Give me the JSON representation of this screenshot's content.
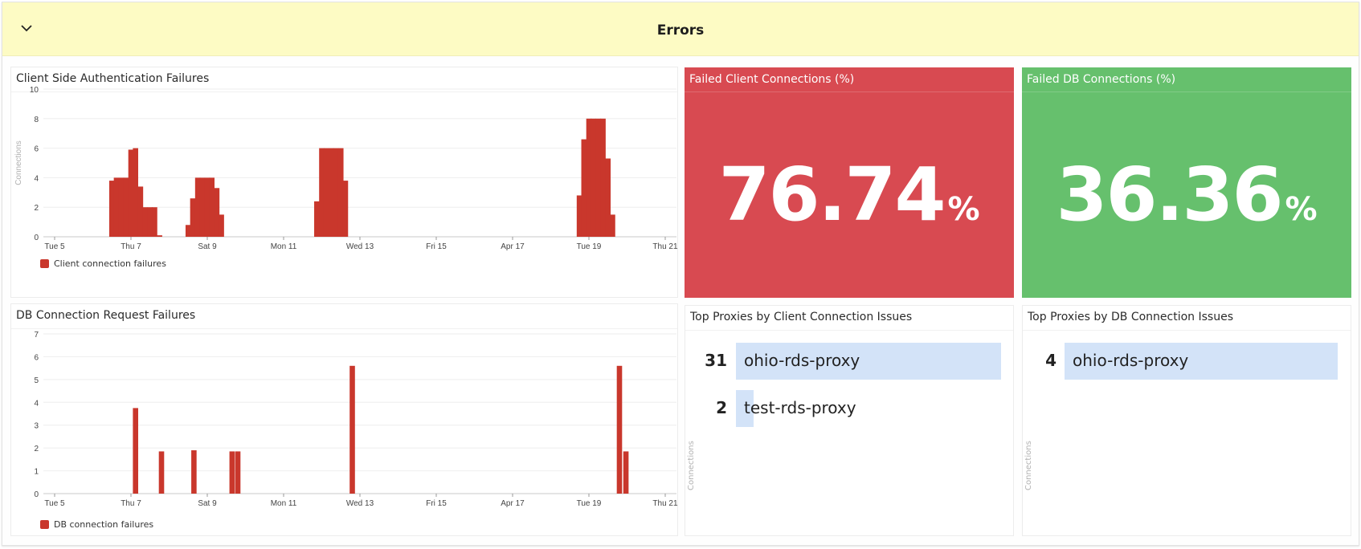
{
  "group": {
    "title": "Errors",
    "collapse_icon": "chevron-down-icon"
  },
  "colors": {
    "header_bg": "#fdfbc4",
    "bar": "#c9372c",
    "stat_bad": "#d84a51",
    "stat_good": "#66c06d",
    "toplist_bar": "#d3e3f8"
  },
  "panels": {
    "client_auth": {
      "title": "Client Side Authentication Failures",
      "ylabel": "Connections",
      "legend": "Client connection failures"
    },
    "db_requests": {
      "title": "DB Connection Request Failures",
      "ylabel": "",
      "legend": "DB connection failures"
    },
    "failed_client": {
      "title": "Failed Client Connections (%)",
      "value": "76.74",
      "unit": "%"
    },
    "failed_db": {
      "title": "Failed DB Connections (%)",
      "value": "36.36",
      "unit": "%"
    },
    "top_client": {
      "title": "Top Proxies by Client Connection Issues",
      "ylabel": "Connections",
      "rows": [
        {
          "count": "31",
          "name": "ohio-rds-proxy"
        },
        {
          "count": "2",
          "name": "test-rds-proxy"
        }
      ]
    },
    "top_db": {
      "title": "Top Proxies by DB Connection Issues",
      "ylabel": "Connections",
      "rows": [
        {
          "count": "4",
          "name": "ohio-rds-proxy"
        }
      ]
    }
  },
  "chart_data": [
    {
      "type": "bar",
      "title": "Client Side Authentication Failures",
      "xlabel": "",
      "ylabel": "Connections",
      "ylim": [
        0,
        10
      ],
      "yticks": [
        0,
        2,
        4,
        6,
        8,
        10
      ],
      "xticks": [
        "Tue 5",
        "Thu 7",
        "Sat 9",
        "Mon 11",
        "Wed 13",
        "Fri 15",
        "Apr 17",
        "Tue 19",
        "Thu 21"
      ],
      "grid": true,
      "legend_position": "bottom-left",
      "series": [
        {
          "name": "Client connection failures",
          "color": "#c9372c",
          "points": [
            {
              "day": 6.5,
              "value": 3.8
            },
            {
              "day": 6.62,
              "value": 4
            },
            {
              "day": 6.75,
              "value": 4
            },
            {
              "day": 6.87,
              "value": 4
            },
            {
              "day": 7.0,
              "value": 5.9
            },
            {
              "day": 7.12,
              "value": 6
            },
            {
              "day": 7.25,
              "value": 3.4
            },
            {
              "day": 7.37,
              "value": 2
            },
            {
              "day": 7.5,
              "value": 2
            },
            {
              "day": 7.62,
              "value": 2
            },
            {
              "day": 7.75,
              "value": 0.1
            },
            {
              "day": 8.5,
              "value": 0.8
            },
            {
              "day": 8.62,
              "value": 2.6
            },
            {
              "day": 8.75,
              "value": 4
            },
            {
              "day": 8.87,
              "value": 4
            },
            {
              "day": 9.0,
              "value": 4
            },
            {
              "day": 9.12,
              "value": 4
            },
            {
              "day": 9.25,
              "value": 3.3
            },
            {
              "day": 9.37,
              "value": 1.5
            },
            {
              "day": 11.87,
              "value": 2.4
            },
            {
              "day": 12.0,
              "value": 6
            },
            {
              "day": 12.12,
              "value": 6
            },
            {
              "day": 12.25,
              "value": 6
            },
            {
              "day": 12.37,
              "value": 6
            },
            {
              "day": 12.5,
              "value": 6
            },
            {
              "day": 12.62,
              "value": 3.8
            },
            {
              "day": 18.75,
              "value": 2.8
            },
            {
              "day": 18.87,
              "value": 6.6
            },
            {
              "day": 19.0,
              "value": 8
            },
            {
              "day": 19.12,
              "value": 8
            },
            {
              "day": 19.25,
              "value": 8
            },
            {
              "day": 19.37,
              "value": 8
            },
            {
              "day": 19.5,
              "value": 5.3
            },
            {
              "day": 19.62,
              "value": 1.5
            }
          ]
        }
      ]
    },
    {
      "type": "bar",
      "title": "DB Connection Request Failures",
      "xlabel": "",
      "ylabel": "",
      "ylim": [
        0,
        7
      ],
      "yticks": [
        0,
        1,
        2,
        3,
        4,
        5,
        6,
        7
      ],
      "xticks": [
        "Tue 5",
        "Thu 7",
        "Sat 9",
        "Mon 11",
        "Wed 13",
        "Fri 15",
        "Apr 17",
        "Tue 19",
        "Thu 21"
      ],
      "grid": true,
      "legend_position": "bottom-left",
      "series": [
        {
          "name": "DB connection failures",
          "color": "#c9372c",
          "points": [
            {
              "day": 7.12,
              "value": 3.75
            },
            {
              "day": 7.8,
              "value": 1.85
            },
            {
              "day": 8.65,
              "value": 1.9
            },
            {
              "day": 9.65,
              "value": 1.85
            },
            {
              "day": 9.8,
              "value": 1.85
            },
            {
              "day": 12.8,
              "value": 5.6
            },
            {
              "day": 19.8,
              "value": 5.6
            },
            {
              "day": 19.97,
              "value": 1.85
            }
          ]
        }
      ]
    },
    {
      "type": "table",
      "title": "Failed Client Connections (%)",
      "values": [
        76.74
      ],
      "unit": "%"
    },
    {
      "type": "table",
      "title": "Failed DB Connections (%)",
      "values": [
        36.36
      ],
      "unit": "%"
    },
    {
      "type": "bar",
      "title": "Top Proxies by Client Connection Issues",
      "ylabel": "Connections",
      "categories": [
        "ohio-rds-proxy",
        "test-rds-proxy"
      ],
      "values": [
        31,
        2
      ]
    },
    {
      "type": "bar",
      "title": "Top Proxies by DB Connection Issues",
      "ylabel": "Connections",
      "categories": [
        "ohio-rds-proxy"
      ],
      "values": [
        4
      ]
    }
  ]
}
